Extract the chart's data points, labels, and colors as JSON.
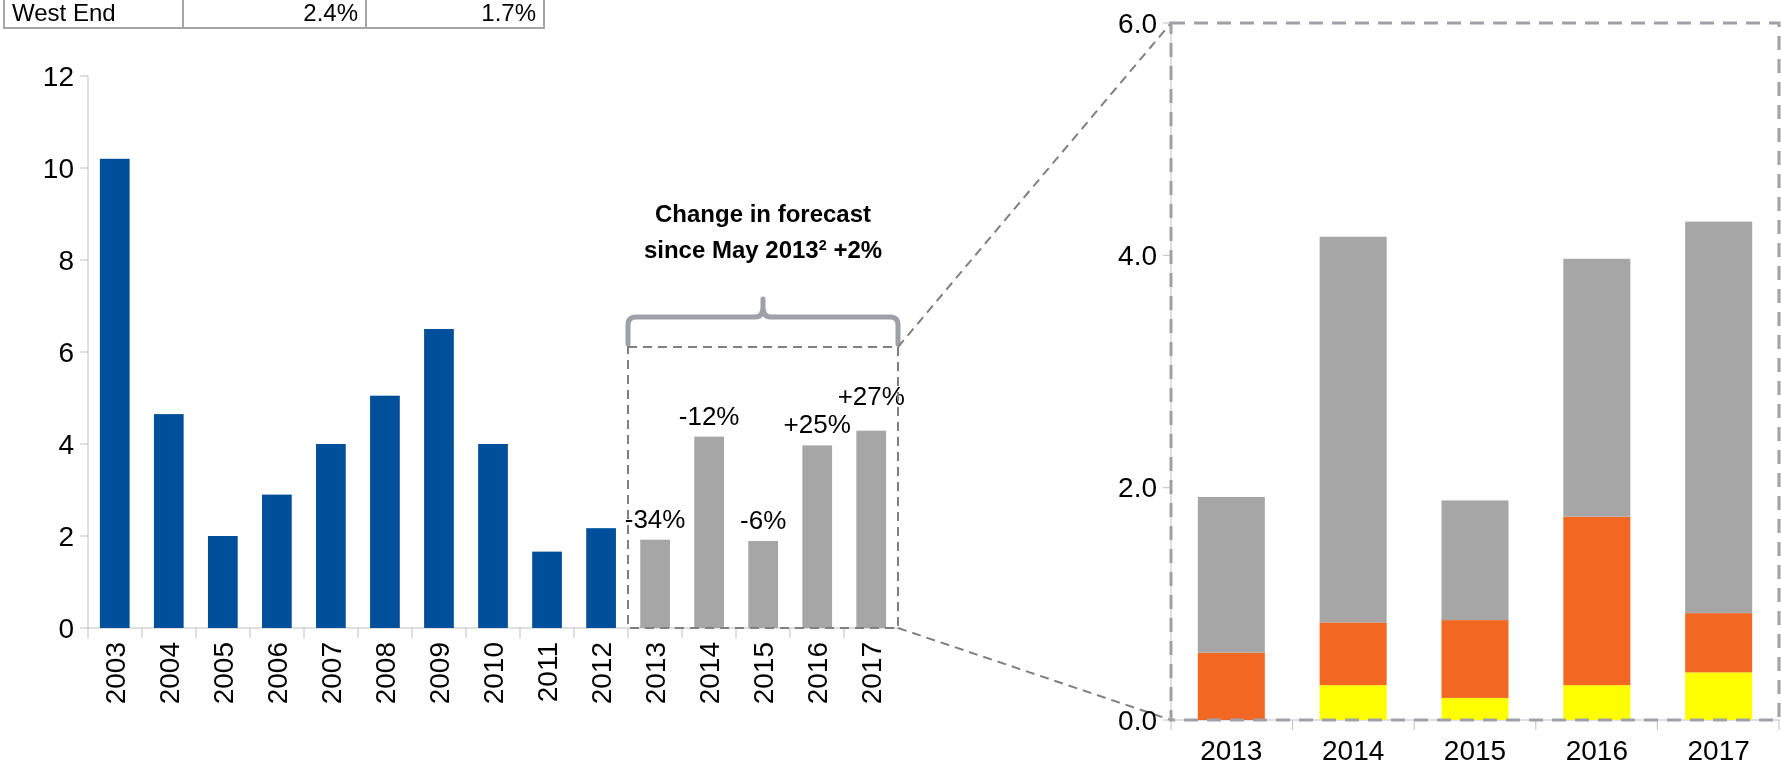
{
  "chart_data": [
    {
      "type": "bar",
      "categories": [
        "2003",
        "2004",
        "2005",
        "2006",
        "2007",
        "2008",
        "2009",
        "2010",
        "2011",
        "2012",
        "2013",
        "2014",
        "2015",
        "2016",
        "2017"
      ],
      "values": [
        10.2,
        4.65,
        2.0,
        2.9,
        4.0,
        5.05,
        6.5,
        4.0,
        1.66,
        2.17,
        1.92,
        4.16,
        1.89,
        3.97,
        4.29
      ],
      "colors": [
        "#004f9a",
        "#004f9a",
        "#004f9a",
        "#004f9a",
        "#004f9a",
        "#004f9a",
        "#004f9a",
        "#004f9a",
        "#004f9a",
        "#004f9a",
        "#a6a6a6",
        "#a6a6a6",
        "#a6a6a6",
        "#a6a6a6",
        "#a6a6a6"
      ],
      "ylim": [
        0,
        12
      ],
      "yticks": [
        0,
        2,
        4,
        6,
        8,
        10,
        12
      ],
      "annotations": [
        "Change in forecast since May 2013$^{2}$ +2%",
        "West End",
        "2.4%",
        "1.7%",
        {
          "text": "-34%",
          "x": "2013",
          "y": 1.92
        },
        {
          "text": "-12%",
          "x": "2014",
          "y": 4.16
        },
        {
          "text": "-6%",
          "x": "2015",
          "y": 1.89
        },
        {
          "text": "+25%",
          "x": "2016",
          "y": 3.97
        },
        {
          "text": "+27%",
          "x": "2017",
          "y": 4.29
        }
      ]
    },
    {
      "type": "bar",
      "stacked": true,
      "categories": [
        "2013",
        "2014",
        "2015",
        "2016",
        "2017"
      ],
      "series": [
        {
          "color": "#ffff00",
          "values": [
            0,
            0.3,
            0.19,
            0.3,
            0.41
          ]
        },
        {
          "color": "#f26722",
          "values": [
            0.58,
            0.54,
            0.67,
            1.45,
            0.51
          ]
        },
        {
          "color": "#a6a6a6",
          "values": [
            1.34,
            3.32,
            1.03,
            2.22,
            3.37
          ]
        }
      ],
      "ylim": [
        0,
        6
      ],
      "yticks": [
        {
          "value": 0,
          "label": "0.0"
        },
        {
          "value": 2,
          "label": "2.0"
        },
        {
          "value": 4,
          "label": "4.0"
        },
        {
          "value": 6,
          "label": "6.0"
        }
      ]
    }
  ]
}
